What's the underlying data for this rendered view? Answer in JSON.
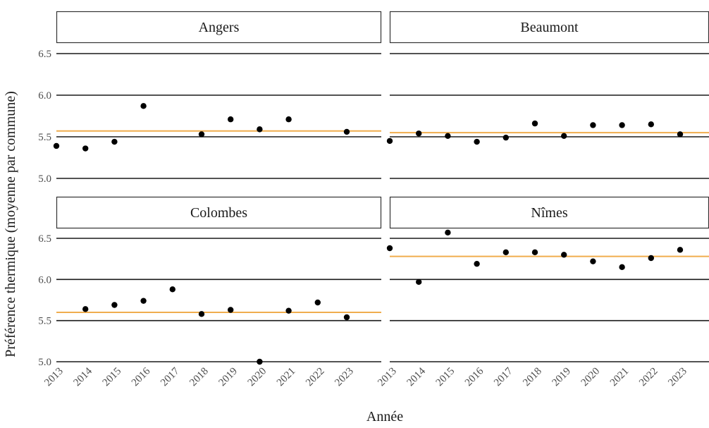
{
  "chart_data": {
    "type": "scatter",
    "xlabel": "Année",
    "ylabel": "Préférence thermique (moyenne par commune)",
    "x_ticks": [
      "2013",
      "2014",
      "2015",
      "2016",
      "2017",
      "2018",
      "2019",
      "2020",
      "2021",
      "2022",
      "2023"
    ],
    "y_ticks": [
      5.0,
      5.5,
      6.0,
      6.5
    ],
    "y_tick_labels": [
      "5.0",
      "5.5",
      "6.0",
      "6.5"
    ],
    "ylim": [
      5.0,
      6.5
    ],
    "grid": true,
    "reference_line_color": "#f0ad4e",
    "point_color": "#000000",
    "facets": [
      {
        "name": "Angers",
        "mean": 5.57,
        "points": [
          {
            "x": 2013,
            "y": 5.39
          },
          {
            "x": 2014,
            "y": 5.36
          },
          {
            "x": 2015,
            "y": 5.44
          },
          {
            "x": 2016,
            "y": 5.87
          },
          {
            "x": 2018,
            "y": 5.53
          },
          {
            "x": 2019,
            "y": 5.71
          },
          {
            "x": 2020,
            "y": 5.59
          },
          {
            "x": 2021,
            "y": 5.71
          },
          {
            "x": 2023,
            "y": 5.56
          }
        ]
      },
      {
        "name": "Beaumont",
        "mean": 5.55,
        "points": [
          {
            "x": 2013,
            "y": 5.45
          },
          {
            "x": 2014,
            "y": 5.54
          },
          {
            "x": 2015,
            "y": 5.51
          },
          {
            "x": 2016,
            "y": 5.44
          },
          {
            "x": 2017,
            "y": 5.49
          },
          {
            "x": 2018,
            "y": 5.66
          },
          {
            "x": 2019,
            "y": 5.51
          },
          {
            "x": 2020,
            "y": 5.64
          },
          {
            "x": 2021,
            "y": 5.64
          },
          {
            "x": 2022,
            "y": 5.65
          },
          {
            "x": 2023,
            "y": 5.53
          }
        ]
      },
      {
        "name": "Colombes",
        "mean": 5.6,
        "points": [
          {
            "x": 2014,
            "y": 5.64
          },
          {
            "x": 2015,
            "y": 5.69
          },
          {
            "x": 2016,
            "y": 5.74
          },
          {
            "x": 2017,
            "y": 5.88
          },
          {
            "x": 2018,
            "y": 5.58
          },
          {
            "x": 2019,
            "y": 5.63
          },
          {
            "x": 2020,
            "y": 5.0
          },
          {
            "x": 2021,
            "y": 5.62
          },
          {
            "x": 2022,
            "y": 5.72
          },
          {
            "x": 2023,
            "y": 5.54
          }
        ]
      },
      {
        "name": "Nîmes",
        "mean": 6.28,
        "points": [
          {
            "x": 2013,
            "y": 6.38
          },
          {
            "x": 2014,
            "y": 5.97
          },
          {
            "x": 2015,
            "y": 6.57
          },
          {
            "x": 2016,
            "y": 6.19
          },
          {
            "x": 2017,
            "y": 6.33
          },
          {
            "x": 2018,
            "y": 6.33
          },
          {
            "x": 2019,
            "y": 6.3
          },
          {
            "x": 2020,
            "y": 6.22
          },
          {
            "x": 2021,
            "y": 6.15
          },
          {
            "x": 2022,
            "y": 6.26
          },
          {
            "x": 2023,
            "y": 6.36
          }
        ]
      }
    ]
  }
}
